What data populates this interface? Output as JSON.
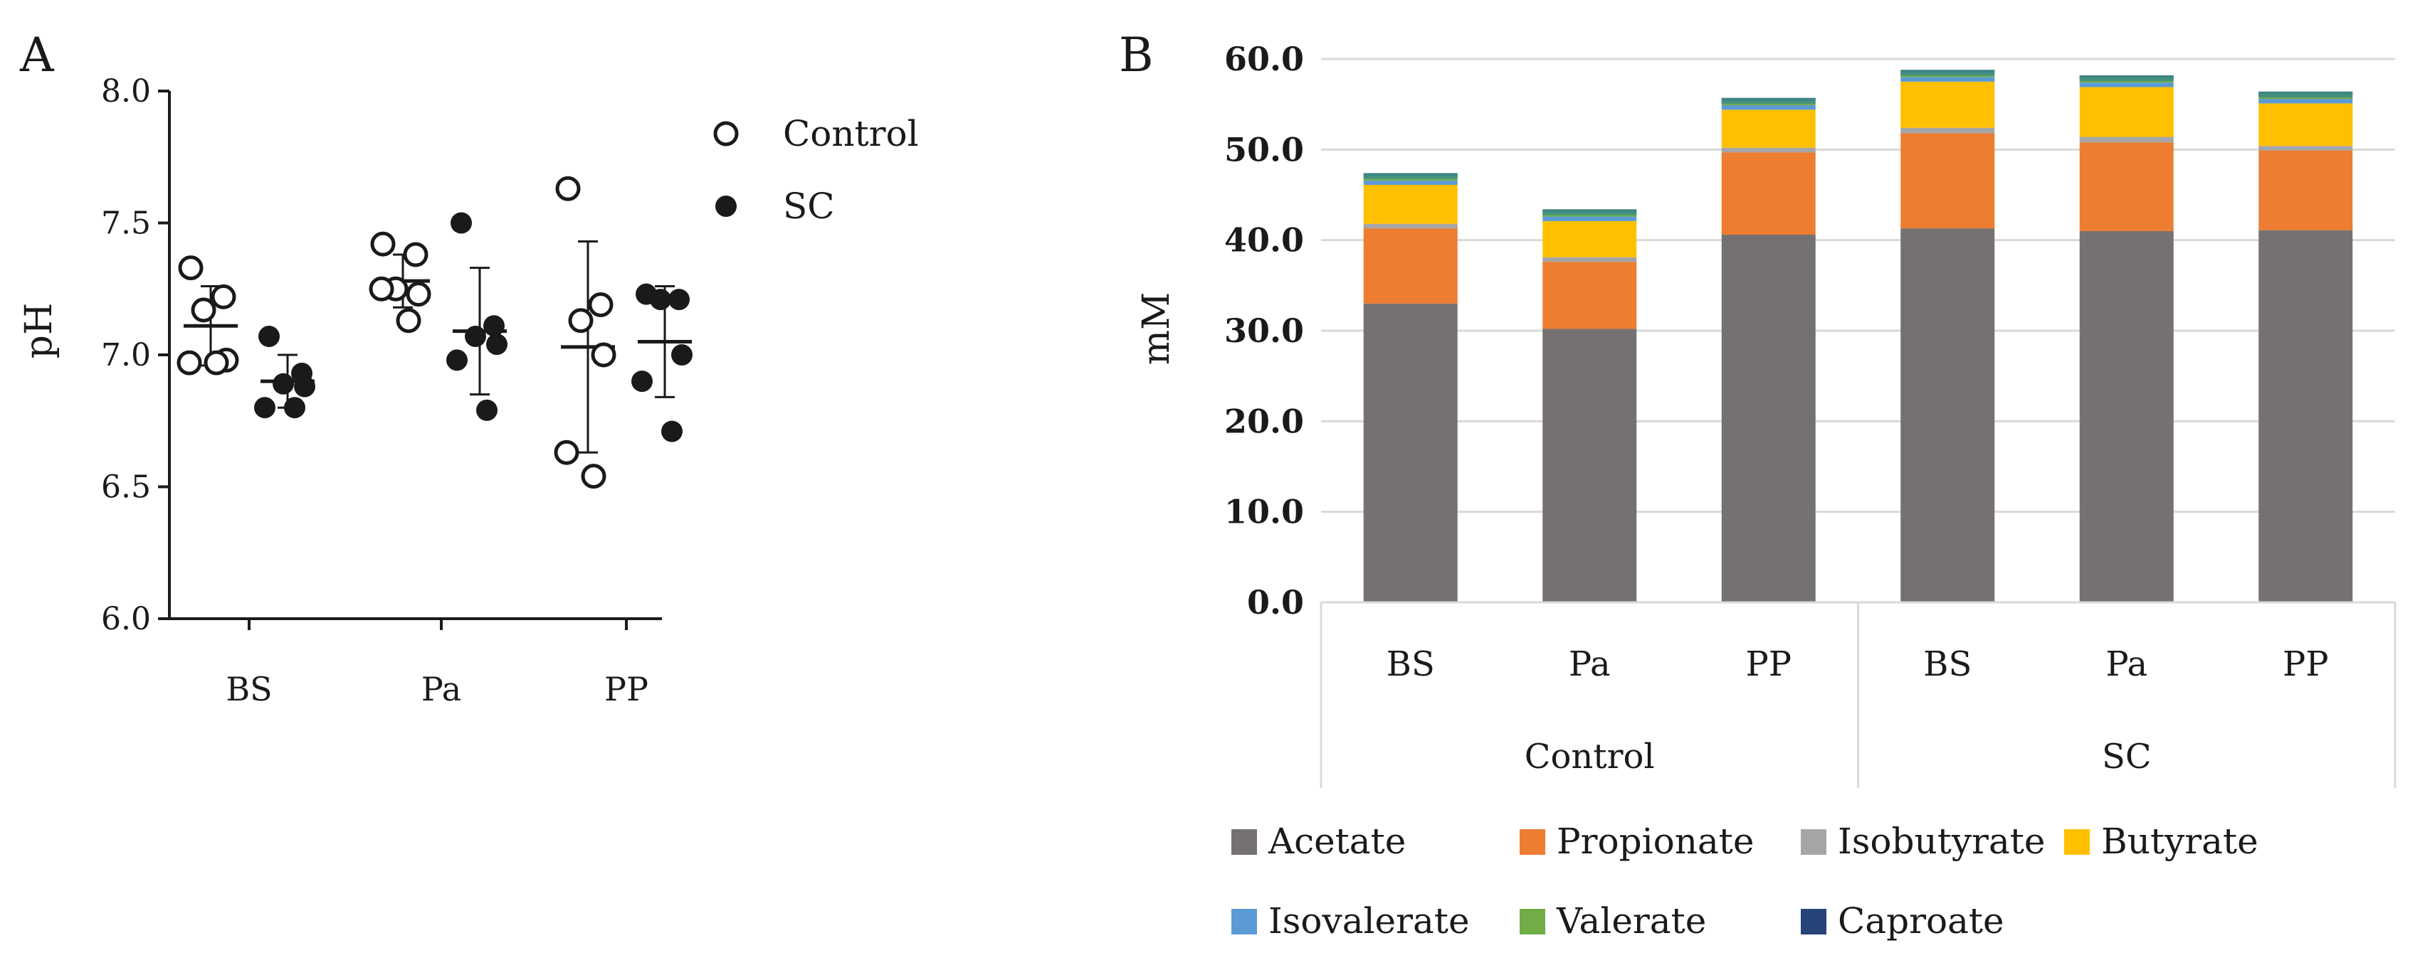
{
  "chart_data": [
    {
      "panel": "A",
      "type": "scatter",
      "ylabel": "pH",
      "ylim": [
        6.0,
        8.0
      ],
      "yticks": [
        "6.0",
        "6.5",
        "7.0",
        "7.5",
        "8.0"
      ],
      "categories": [
        "BS",
        "Pa",
        "PP"
      ],
      "legend": [
        {
          "name": "Control",
          "marker": "open-circle"
        },
        {
          "name": "SC",
          "marker": "filled-circle"
        }
      ],
      "series": [
        {
          "name": "Control",
          "groups": [
            {
              "category": "BS",
              "points": [
                7.33,
                7.22,
                7.17,
                6.98,
                6.97,
                6.97
              ],
              "mean": 7.11,
              "sd": 0.15
            },
            {
              "category": "Pa",
              "points": [
                7.42,
                7.38,
                7.25,
                7.23,
                7.25,
                7.13
              ],
              "mean": 7.28,
              "sd": 0.1
            },
            {
              "category": "PP",
              "points": [
                7.63,
                7.19,
                7.13,
                7.0,
                6.63,
                6.54
              ],
              "mean": 7.03,
              "sd": 0.4
            }
          ]
        },
        {
          "name": "SC",
          "groups": [
            {
              "category": "BS",
              "points": [
                7.07,
                6.93,
                6.89,
                6.88,
                6.8,
                6.8
              ],
              "mean": 6.9,
              "sd": 0.1
            },
            {
              "category": "Pa",
              "points": [
                7.5,
                7.11,
                7.07,
                7.04,
                6.98,
                6.79
              ],
              "mean": 7.09,
              "sd": 0.24
            },
            {
              "category": "PP",
              "points": [
                7.23,
                7.21,
                7.21,
                7.0,
                6.9,
                6.71
              ],
              "mean": 7.05,
              "sd": 0.21
            }
          ]
        }
      ]
    },
    {
      "panel": "B",
      "type": "bar",
      "stacked": true,
      "ylabel": "mM",
      "ylim": [
        0,
        60
      ],
      "yticks": [
        "0.0",
        "10.0",
        "20.0",
        "30.0",
        "40.0",
        "50.0",
        "60.0"
      ],
      "categories": [
        "BS",
        "Pa",
        "PP",
        "BS",
        "Pa",
        "PP"
      ],
      "groups": [
        "Control",
        "SC"
      ],
      "group_of_category": [
        0,
        0,
        0,
        1,
        1,
        1
      ],
      "series": [
        {
          "name": "Acetate",
          "color": "#767171",
          "values": [
            33.0,
            30.2,
            40.6,
            41.3,
            41.0,
            41.1
          ]
        },
        {
          "name": "Propionate",
          "color": "#ED7D31",
          "values": [
            8.3,
            7.4,
            9.1,
            10.5,
            9.8,
            8.8
          ]
        },
        {
          "name": "Isobutyrate",
          "color": "#A5A5A5",
          "values": [
            0.5,
            0.5,
            0.5,
            0.6,
            0.6,
            0.5
          ]
        },
        {
          "name": "Butyrate",
          "color": "#FFC000",
          "values": [
            4.3,
            4.0,
            4.2,
            5.1,
            5.5,
            4.7
          ]
        },
        {
          "name": "Isovalerate",
          "color": "#5B9BD5",
          "values": [
            0.5,
            0.5,
            0.5,
            0.5,
            0.5,
            0.5
          ]
        },
        {
          "name": "Valerate",
          "color": "#70AD47",
          "values": [
            0.5,
            0.5,
            0.5,
            0.5,
            0.5,
            0.5
          ]
        },
        {
          "name": "Caproate",
          "color": "#264478",
          "values": [
            0.3,
            0.3,
            0.3,
            0.3,
            0.3,
            0.3
          ]
        }
      ]
    }
  ],
  "panel_labels": {
    "a": "A",
    "b": "B"
  },
  "colors": {
    "teal_band": "#3F8E86"
  }
}
